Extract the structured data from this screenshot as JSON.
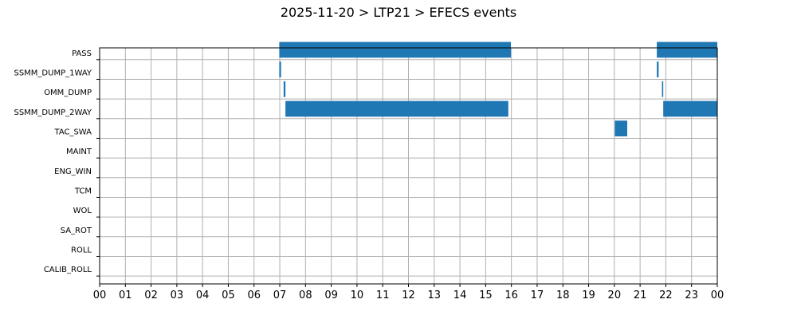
{
  "chart_data": {
    "type": "timeline",
    "title": "2025-11-20 > LTP21 > EFECS events",
    "xlabel": "",
    "ylabel": "",
    "x_range_hours": [
      0,
      24
    ],
    "x_tick_labels": [
      "00",
      "01",
      "02",
      "03",
      "04",
      "05",
      "06",
      "07",
      "08",
      "09",
      "10",
      "11",
      "12",
      "13",
      "14",
      "15",
      "16",
      "17",
      "18",
      "19",
      "20",
      "21",
      "22",
      "23",
      "00"
    ],
    "categories": [
      "PASS",
      "SSMM_DUMP_1WAY",
      "OMM_DUMP",
      "SSMM_DUMP_2WAY",
      "TAC_SWA",
      "MAINT",
      "ENG_WIN",
      "TCM",
      "WOL",
      "SA_ROT",
      "ROLL",
      "CALIB_ROLL"
    ],
    "grid": true,
    "bar_color": "#1f77b4",
    "events": [
      {
        "category": "PASS",
        "start": 6.98,
        "end": 15.98
      },
      {
        "category": "PASS",
        "start": 21.65,
        "end": 24.0
      },
      {
        "category": "SSMM_DUMP_1WAY",
        "start": 6.98,
        "end": 7.05
      },
      {
        "category": "SSMM_DUMP_1WAY",
        "start": 21.65,
        "end": 21.72
      },
      {
        "category": "OMM_DUMP",
        "start": 7.15,
        "end": 7.22
      },
      {
        "category": "OMM_DUMP",
        "start": 21.85,
        "end": 21.9
      },
      {
        "category": "SSMM_DUMP_2WAY",
        "start": 7.22,
        "end": 15.88
      },
      {
        "category": "SSMM_DUMP_2WAY",
        "start": 21.9,
        "end": 24.0
      },
      {
        "category": "TAC_SWA",
        "start": 20.02,
        "end": 20.5
      }
    ]
  }
}
